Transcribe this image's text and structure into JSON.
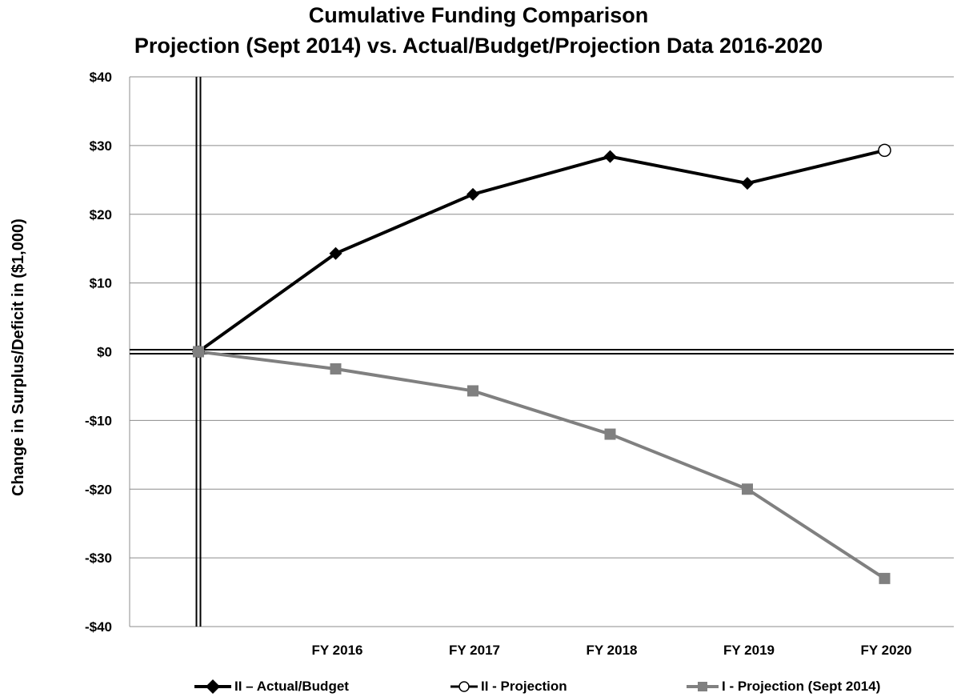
{
  "chart_data": {
    "type": "line",
    "title": "Cumulative Funding Comparison",
    "subtitle": "Projection (Sept 2014) vs. Actual/Budget/Projection Data 2016-2020",
    "ylabel": "Change in Surplus/Deficit in ($1,000)",
    "xlabel": "",
    "categories": [
      "",
      "FY 2016",
      "FY 2017",
      "FY 2018",
      "FY 2019",
      "FY 2020"
    ],
    "ylim": [
      -40,
      40
    ],
    "yticks": [
      "$40",
      "$30",
      "$20",
      "$10",
      "$0",
      "-$10",
      "-$20",
      "-$30",
      "-$40"
    ],
    "ytick_values": [
      40,
      30,
      20,
      10,
      0,
      -10,
      -20,
      -30,
      -40
    ],
    "grid": true,
    "legend_position": "bottom",
    "series": [
      {
        "name": "II – Actual/Budget",
        "color": "#000000",
        "marker": "diamond",
        "points": [
          [
            0,
            0
          ],
          [
            1,
            14.3
          ],
          [
            2,
            22.9
          ],
          [
            3,
            28.4
          ],
          [
            4,
            24.5
          ]
        ]
      },
      {
        "name": "II - Projection",
        "color": "#000000",
        "marker": "circle-open",
        "points": [
          [
            4,
            24.5
          ],
          [
            5,
            29.3
          ]
        ]
      },
      {
        "name": "I - Projection (Sept 2014)",
        "color": "#808080",
        "marker": "square",
        "points": [
          [
            0,
            0
          ],
          [
            1,
            -2.5
          ],
          [
            2,
            -5.7
          ],
          [
            3,
            -12
          ],
          [
            4,
            -20
          ],
          [
            5,
            -33
          ]
        ]
      }
    ]
  }
}
